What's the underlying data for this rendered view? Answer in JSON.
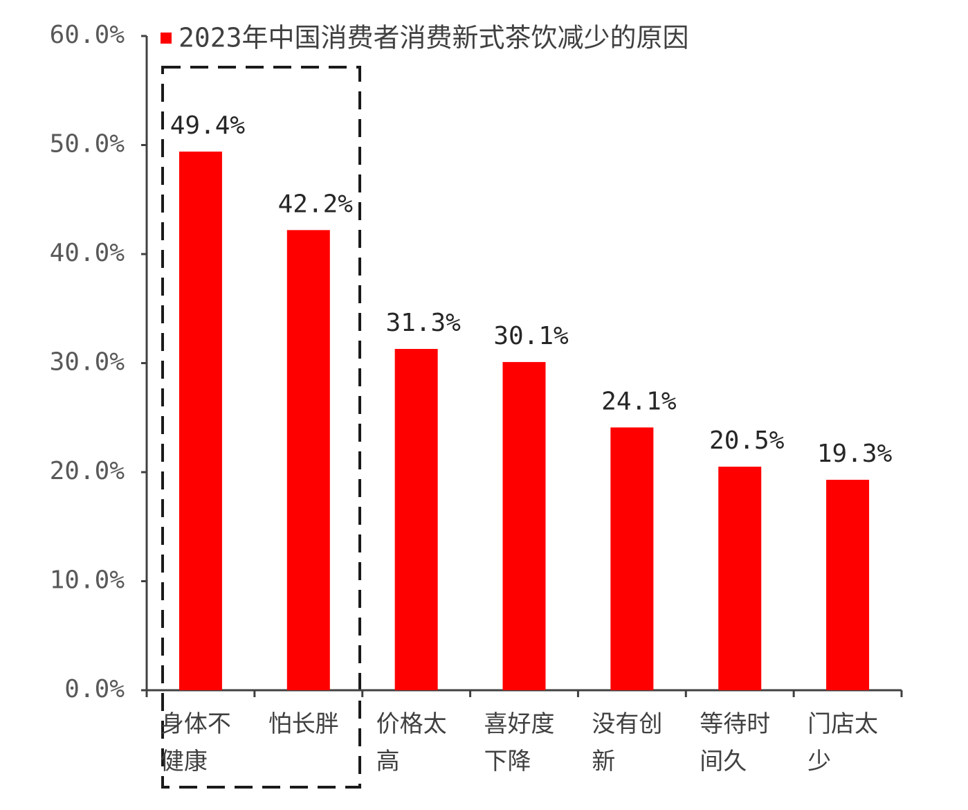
{
  "chart_data": {
    "type": "bar",
    "categories": [
      "身体不健康",
      "怕长胖",
      "价格太高",
      "喜好度下降",
      "没有创新",
      "等待时间久",
      "门店太少"
    ],
    "series": [
      {
        "name": "2023年中国消费者消费新式茶饮减少的原因",
        "color": "#ff0000",
        "values": [
          49.4,
          42.2,
          31.3,
          30.1,
          24.1,
          20.5,
          19.3
        ],
        "value_labels": [
          "49.4%",
          "42.2%",
          "31.3%",
          "30.1%",
          "24.1%",
          "20.5%",
          "19.3%"
        ]
      }
    ],
    "ylim": [
      0,
      60
    ],
    "yticks": [
      {
        "value": 0,
        "label": "0.0%"
      },
      {
        "value": 10,
        "label": "10.0%"
      },
      {
        "value": 20,
        "label": "20.0%"
      },
      {
        "value": 30,
        "label": "30.0%"
      },
      {
        "value": 40,
        "label": "40.0%"
      },
      {
        "value": 50,
        "label": "50.0%"
      },
      {
        "value": 60,
        "label": "60.0%"
      }
    ],
    "legend": "top",
    "grid": false
  }
}
